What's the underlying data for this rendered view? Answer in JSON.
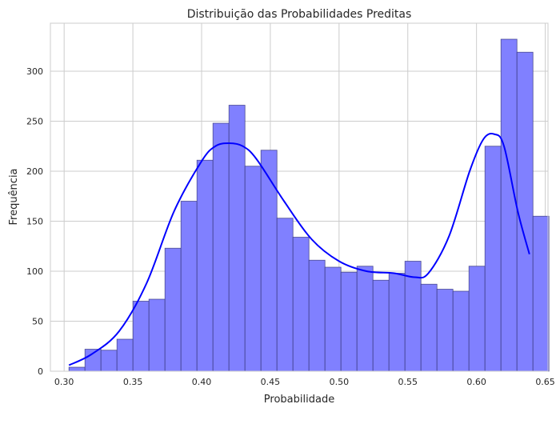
{
  "chart_data": {
    "type": "bar",
    "subtype": "histogram-with-kde",
    "title": "Distribuição das Probabilidades Preditas",
    "xlabel": "Probabilidade",
    "ylabel": "Frequência",
    "xlim": [
      0.29,
      0.652
    ],
    "ylim": [
      0,
      348
    ],
    "xticks": [
      "0.30",
      "0.35",
      "0.40",
      "0.45",
      "0.50",
      "0.55",
      "0.60",
      "0.65"
    ],
    "xtick_values": [
      0.3,
      0.35,
      0.4,
      0.45,
      0.5,
      0.55,
      0.6,
      0.65
    ],
    "yticks": [
      "0",
      "50",
      "100",
      "150",
      "200",
      "250",
      "300"
    ],
    "ytick_values": [
      0,
      50,
      100,
      150,
      200,
      250,
      300
    ],
    "grid": true,
    "bin_start": 0.3035,
    "bin_width": 0.01164,
    "values": [
      4,
      22,
      21,
      32,
      70,
      72,
      123,
      170,
      211,
      248,
      266,
      205,
      221,
      153,
      134,
      111,
      104,
      99,
      105,
      91,
      98,
      110,
      87,
      82,
      80,
      105,
      225,
      332,
      319,
      155
    ],
    "bar_color": "#8080ff",
    "bar_edge_color": "#3a3a80",
    "kde": {
      "color": "#0000ff",
      "x": [
        0.3035,
        0.32,
        0.34,
        0.36,
        0.38,
        0.4,
        0.41,
        0.42,
        0.43,
        0.44,
        0.46,
        0.48,
        0.5,
        0.52,
        0.54,
        0.555,
        0.565,
        0.58,
        0.595,
        0.605,
        0.613,
        0.62,
        0.63,
        0.6385
      ],
      "y": [
        6,
        17,
        40,
        88,
        160,
        210,
        225,
        228,
        225,
        212,
        170,
        132,
        110,
        100,
        98,
        94,
        98,
        135,
        200,
        232,
        237,
        225,
        160,
        117
      ]
    }
  }
}
